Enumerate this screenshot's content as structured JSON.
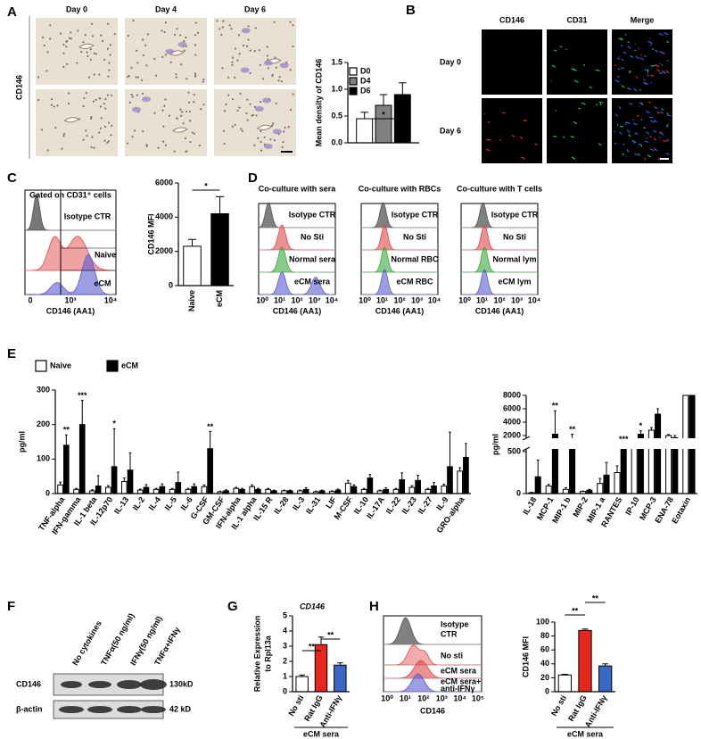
{
  "figure": {
    "panel_labels": [
      "A",
      "B",
      "C",
      "D",
      "E",
      "F",
      "G",
      "H"
    ],
    "panel_A": {
      "columns": [
        "Day 0",
        "Day 4",
        "Day 6"
      ],
      "row_label": "CD146"
    },
    "panel_B": {
      "columns": [
        "CD146",
        "CD31",
        "Merge"
      ],
      "column_colors": [
        "#e3262a",
        "#2db84a",
        "#f2a62a"
      ],
      "rows": [
        "Day 0",
        "Day 6"
      ]
    },
    "panel_C": {
      "title": "Gated on CD31⁺ cells",
      "curves": [
        "Isotype CTR",
        "Naive",
        "eCM"
      ],
      "xticks": [
        "0",
        "10³",
        "10⁴"
      ],
      "xlabel": "CD146 (AA1)"
    },
    "panel_D": [
      {
        "title": "Co-culture with sera",
        "curves": [
          "Isotype CTR",
          "No Sti",
          "Normal sera",
          "eCM sera"
        ],
        "xticks": [
          "10⁰",
          "10¹",
          "10²",
          "10³",
          "10⁴"
        ],
        "xlabel": "CD146 (AA1)"
      },
      {
        "title": "Co-culture with RBCs",
        "curves": [
          "Isotype CTR",
          "No Sti",
          "Normal RBC",
          "eCM RBC"
        ],
        "xticks": [
          "10⁰",
          "10¹",
          "10²",
          "10³",
          "10⁴"
        ],
        "xlabel": "CD146 (AA1)"
      },
      {
        "title": "Co-culture with T cells",
        "curves": [
          "Isotype CTR",
          "No Sti",
          "Normal lym",
          "eCM lym"
        ],
        "xticks": [
          "10⁰",
          "10¹",
          "10²",
          "10³",
          "10⁴"
        ],
        "xlabel": "CD146 (AA1)"
      }
    ],
    "panel_F": {
      "columns": [
        "No cytokines",
        "TNFα(50 ng/ml)",
        "IFNγ(50 ng/ml)",
        "TNFα+IFNγ"
      ],
      "rows": [
        "CD146",
        "β-actin"
      ],
      "sizes": [
        "130kD",
        "42 kD"
      ]
    },
    "panel_H": {
      "curves": [
        [
          "Isotype",
          "CTR"
        ],
        [
          "No sti"
        ],
        [
          "eCM sera"
        ],
        [
          "eCM sera+",
          "anti-IFNγ"
        ]
      ],
      "xticks": [
        "10⁰",
        "10¹",
        "10²",
        "10³",
        "10⁴",
        "10⁵"
      ],
      "xlabel": "CD146"
    }
  },
  "chart_data": [
    {
      "type": "bar",
      "ylabel": "Mean density of CD146",
      "legend": "top-left",
      "series": [
        {
          "name": "D0",
          "color": "#ffffff",
          "values": [
            0.45
          ],
          "errors": [
            0.12
          ]
        },
        {
          "name": "D4",
          "color": "#808080",
          "values": [
            0.7
          ],
          "errors": [
            0.2
          ]
        },
        {
          "name": "D6",
          "color": "#000000",
          "values": [
            0.9
          ],
          "errors": [
            0.22
          ]
        }
      ],
      "ylim": [
        0,
        1.5
      ],
      "yticks": [
        {
          "value": 0,
          "label": "0.0"
        },
        0.5,
        {
          "value": 1,
          "label": "1.0"
        },
        1.5
      ],
      "annotations": [
        {
          "text": "*",
          "from": "D0",
          "to": "D6"
        }
      ]
    },
    {
      "type": "bar",
      "ylabel": "CD146 MFI",
      "categories": [
        "Naive",
        "eCM"
      ],
      "values": [
        2300,
        4200
      ],
      "errors": [
        400,
        1000
      ],
      "colors": [
        "#ffffff",
        "#000000"
      ],
      "ylim": [
        0,
        6000
      ],
      "yticks": [
        0,
        2000,
        4000,
        6000
      ],
      "annotations": [
        {
          "text": "*",
          "from": "Naive",
          "to": "eCM"
        }
      ]
    },
    {
      "type": "bar",
      "ylabel": "pg/ml",
      "legend": "top",
      "categories": [
        "TNF-alpha",
        "IFN-gamma",
        "IL-1 beta",
        "IL-12p70",
        "IL-13",
        "IL-2",
        "IL-4",
        "IL-5",
        "IL-6",
        "G-CSF",
        "GM-CSF",
        "IFN-alpha",
        "IL-1 alpha",
        "IL-15 R",
        "IL-28",
        "IL-3",
        "IL-31",
        "LIF",
        "M-CSF",
        "IL-10",
        "IL-17A",
        "IL-22",
        "IL-23",
        "IL-27",
        "IL-9",
        "GRO-alpha"
      ],
      "series": [
        {
          "name": "Naive",
          "color": "#ffffff",
          "values": [
            25,
            12,
            8,
            18,
            35,
            10,
            12,
            12,
            12,
            20,
            5,
            15,
            20,
            12,
            8,
            8,
            5,
            6,
            30,
            12,
            8,
            12,
            18,
            12,
            22,
            65
          ],
          "errors": [
            8,
            3,
            3,
            5,
            10,
            3,
            3,
            3,
            3,
            5,
            2,
            3,
            5,
            3,
            2,
            2,
            2,
            2,
            8,
            3,
            2,
            3,
            5,
            3,
            5,
            10
          ]
        },
        {
          "name": "eCM",
          "color": "#000000",
          "values": [
            140,
            200,
            22,
            78,
            68,
            18,
            20,
            32,
            20,
            130,
            8,
            12,
            12,
            8,
            8,
            12,
            8,
            10,
            20,
            45,
            12,
            40,
            38,
            22,
            78,
            105
          ],
          "errors": [
            30,
            70,
            30,
            110,
            50,
            8,
            8,
            30,
            8,
            50,
            3,
            3,
            3,
            2,
            2,
            5,
            2,
            3,
            5,
            10,
            5,
            20,
            15,
            10,
            100,
            40
          ]
        }
      ],
      "ylim": [
        0,
        300
      ],
      "yticks": [
        0,
        100,
        200,
        300
      ],
      "annotations": [
        {
          "text": "**",
          "at": "TNF-alpha"
        },
        {
          "text": "***",
          "at": "IFN-gamma"
        },
        {
          "text": "*",
          "at": "IL-12p70"
        },
        {
          "text": "**",
          "at": "G-CSF"
        }
      ]
    },
    {
      "type": "bar",
      "ylabel": "pg/ml",
      "categories": [
        "IL-18",
        "MCP-1",
        "MIP-1 b",
        "MIP-2",
        "MIP-1 a",
        "RANTES",
        "IP-10",
        "MCP-3",
        "ENA-78",
        "Eotaxin"
      ],
      "series": [
        {
          "color": "#ffffff",
          "values": [
            10,
            90,
            50,
            25,
            120,
            250,
            1100,
            2800,
            2000,
            8000
          ],
          "errors": [
            5,
            20,
            20,
            5,
            60,
            80,
            100,
            400,
            150,
            0
          ]
        },
        {
          "color": "#000000",
          "values": [
            200,
            2200,
            1500,
            40,
            220,
            1000,
            2200,
            5200,
            1800,
            8000
          ],
          "errors": [
            200,
            3500,
            700,
            10,
            150,
            200,
            500,
            800,
            200,
            0
          ]
        }
      ],
      "ylim": [
        0,
        8000
      ],
      "axis_break": [
        500,
        2000
      ],
      "yticks": [
        0,
        500,
        2000,
        4000,
        6000,
        8000
      ],
      "annotations": [
        {
          "text": "**",
          "at": "MCP-1"
        },
        {
          "text": "**",
          "at": "MIP-1 b"
        },
        {
          "text": "***",
          "at": "RANTES"
        },
        {
          "text": "*",
          "at": "IP-10"
        }
      ]
    },
    {
      "type": "bar",
      "title": "CD146",
      "ylabel": [
        "Relative Expression",
        "to Rpl13a"
      ],
      "categories": [
        "No sti",
        "Rat IgG",
        "Anti-IFNγ"
      ],
      "values": [
        1.0,
        3.1,
        1.75
      ],
      "errors": [
        0.1,
        0.5,
        0.15
      ],
      "colors": [
        "#ffffff",
        "#e8251f",
        "#3a67c4"
      ],
      "ylim": [
        0,
        5
      ],
      "yticks": [
        0,
        1,
        2,
        3,
        4,
        5
      ],
      "group_label": "eCM sera",
      "annotations": [
        {
          "text": "**",
          "from": "No sti",
          "to": "Rat IgG"
        },
        {
          "text": "**",
          "from": "Rat IgG",
          "to": "Anti-IFNγ"
        }
      ]
    },
    {
      "type": "bar",
      "ylabel": "CD146 MFI",
      "categories": [
        "No sti",
        "Rat IgG",
        "Anti-IFNγ"
      ],
      "values": [
        24,
        88,
        37
      ],
      "errors": [
        1,
        2,
        3
      ],
      "colors": [
        "#ffffff",
        "#e8251f",
        "#3a67c4"
      ],
      "ylim": [
        0,
        100
      ],
      "yticks": [
        0,
        20,
        40,
        60,
        80,
        100
      ],
      "group_label": "eCM sera",
      "annotations": [
        {
          "text": "**",
          "from": "No sti",
          "to": "Rat IgG"
        },
        {
          "text": "**",
          "from": "Rat IgG",
          "to": "Anti-IFNγ"
        }
      ]
    }
  ]
}
